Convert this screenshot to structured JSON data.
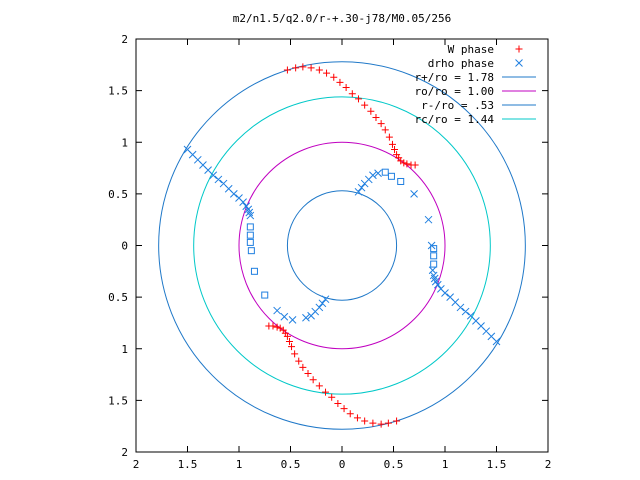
{
  "chart_data": {
    "type": "scatter",
    "title": "m2/n1.5/q2.0/r-+.30-j78/M0.05/256",
    "xlim": [
      -2,
      2
    ],
    "ylim": [
      -2,
      2
    ],
    "xticks": [
      -2,
      -1.5,
      -1,
      -0.5,
      0,
      0.5,
      1,
      1.5,
      2
    ],
    "yticks": [
      -2,
      -1.5,
      -1,
      -0.5,
      0,
      0.5,
      1,
      1.5,
      2
    ],
    "xtick_labels": [
      "2",
      "1.5",
      "1",
      "0.5",
      "0",
      "0.5",
      "1",
      "1.5",
      "2"
    ],
    "ytick_labels": [
      "2",
      "1.5",
      "1",
      "0.5",
      "0",
      "0.5",
      "1",
      "1.5",
      "2"
    ],
    "grid": false,
    "legend_position": "top-right",
    "colors": {
      "w_phase": "#ff0000",
      "drho_phase": "#1f7fe0",
      "r_plus": "#1f78c8",
      "ro": "#c000c0",
      "r_minus": "#1f78c8",
      "rc": "#00c8c8"
    },
    "circles": [
      {
        "name": "r+/ro = 1.78",
        "radius": 1.78,
        "color_key": "r_plus"
      },
      {
        "name": "ro/ro = 1.00",
        "radius": 1.0,
        "color_key": "ro"
      },
      {
        "name": "r-/ro = .53",
        "radius": 0.53,
        "color_key": "r_minus"
      },
      {
        "name": "rc/ro = 1.44",
        "radius": 1.44,
        "color_key": "rc"
      }
    ],
    "series": [
      {
        "name": "W phase",
        "marker": "plus",
        "color_key": "w_phase",
        "points": [
          [
            -0.53,
            1.7
          ],
          [
            -0.45,
            1.72
          ],
          [
            -0.38,
            1.73
          ],
          [
            -0.3,
            1.72
          ],
          [
            -0.22,
            1.7
          ],
          [
            -0.15,
            1.67
          ],
          [
            -0.08,
            1.63
          ],
          [
            -0.02,
            1.58
          ],
          [
            0.04,
            1.53
          ],
          [
            0.1,
            1.47
          ],
          [
            0.16,
            1.42
          ],
          [
            0.22,
            1.36
          ],
          [
            0.28,
            1.3
          ],
          [
            0.33,
            1.24
          ],
          [
            0.38,
            1.18
          ],
          [
            0.42,
            1.12
          ],
          [
            0.46,
            1.05
          ],
          [
            0.49,
            0.98
          ],
          [
            0.51,
            0.93
          ],
          [
            0.53,
            0.88
          ],
          [
            0.55,
            0.85
          ],
          [
            0.57,
            0.82
          ],
          [
            0.6,
            0.8
          ],
          [
            0.63,
            0.79
          ],
          [
            0.67,
            0.78
          ],
          [
            0.71,
            0.78
          ],
          [
            0.53,
            -1.7
          ],
          [
            0.45,
            -1.72
          ],
          [
            0.38,
            -1.73
          ],
          [
            0.3,
            -1.72
          ],
          [
            0.22,
            -1.7
          ],
          [
            0.15,
            -1.67
          ],
          [
            0.08,
            -1.63
          ],
          [
            0.02,
            -1.58
          ],
          [
            -0.04,
            -1.53
          ],
          [
            -0.1,
            -1.47
          ],
          [
            -0.16,
            -1.42
          ],
          [
            -0.22,
            -1.36
          ],
          [
            -0.28,
            -1.3
          ],
          [
            -0.33,
            -1.24
          ],
          [
            -0.38,
            -1.18
          ],
          [
            -0.42,
            -1.12
          ],
          [
            -0.46,
            -1.05
          ],
          [
            -0.49,
            -0.98
          ],
          [
            -0.51,
            -0.93
          ],
          [
            -0.53,
            -0.88
          ],
          [
            -0.55,
            -0.85
          ],
          [
            -0.57,
            -0.82
          ],
          [
            -0.6,
            -0.8
          ],
          [
            -0.63,
            -0.79
          ],
          [
            -0.67,
            -0.78
          ],
          [
            -0.71,
            -0.78
          ]
        ]
      },
      {
        "name": "drho phase",
        "marker": "cross",
        "color_key": "drho_phase",
        "points": [
          [
            -1.5,
            0.93
          ],
          [
            -1.45,
            0.88
          ],
          [
            -1.4,
            0.83
          ],
          [
            -1.35,
            0.78
          ],
          [
            -1.3,
            0.73
          ],
          [
            -1.25,
            0.68
          ],
          [
            -1.2,
            0.64
          ],
          [
            -1.15,
            0.6
          ],
          [
            -1.1,
            0.55
          ],
          [
            -1.05,
            0.5
          ],
          [
            -1.0,
            0.46
          ],
          [
            -0.96,
            0.42
          ],
          [
            -0.93,
            0.38
          ],
          [
            -0.91,
            0.35
          ],
          [
            -0.9,
            0.32
          ],
          [
            -0.89,
            0.29
          ],
          [
            1.5,
            -0.93
          ],
          [
            1.45,
            -0.88
          ],
          [
            1.4,
            -0.83
          ],
          [
            1.35,
            -0.78
          ],
          [
            1.3,
            -0.73
          ],
          [
            1.25,
            -0.68
          ],
          [
            1.2,
            -0.64
          ],
          [
            1.15,
            -0.6
          ],
          [
            1.1,
            -0.55
          ],
          [
            1.05,
            -0.5
          ],
          [
            1.0,
            -0.46
          ],
          [
            0.96,
            -0.42
          ],
          [
            0.93,
            -0.38
          ],
          [
            0.91,
            -0.35
          ],
          [
            0.9,
            -0.32
          ],
          [
            0.89,
            -0.29
          ],
          [
            0.88,
            -0.24
          ],
          [
            0.87,
            0.0
          ],
          [
            0.84,
            0.25
          ],
          [
            0.7,
            0.5
          ],
          [
            -0.63,
            -0.63
          ],
          [
            -0.56,
            -0.69
          ],
          [
            -0.48,
            -0.72
          ],
          [
            0.16,
            0.52
          ],
          [
            0.19,
            0.56
          ],
          [
            0.22,
            0.6
          ],
          [
            0.26,
            0.64
          ],
          [
            0.3,
            0.68
          ],
          [
            0.35,
            0.7
          ],
          [
            -0.16,
            -0.52
          ],
          [
            -0.19,
            -0.56
          ],
          [
            -0.22,
            -0.6
          ],
          [
            -0.26,
            -0.64
          ],
          [
            -0.3,
            -0.68
          ],
          [
            -0.35,
            -0.7
          ]
        ]
      },
      {
        "name": "drho phase",
        "marker": "square",
        "color_key": "drho_phase",
        "points": [
          [
            -0.89,
            0.18
          ],
          [
            -0.89,
            0.1
          ],
          [
            -0.89,
            0.03
          ],
          [
            -0.88,
            -0.05
          ],
          [
            -0.85,
            -0.25
          ],
          [
            -0.75,
            -0.48
          ],
          [
            0.42,
            0.71
          ],
          [
            0.48,
            0.67
          ],
          [
            0.57,
            0.62
          ],
          [
            0.89,
            -0.18
          ],
          [
            0.89,
            -0.1
          ],
          [
            0.89,
            -0.03
          ]
        ]
      }
    ]
  }
}
